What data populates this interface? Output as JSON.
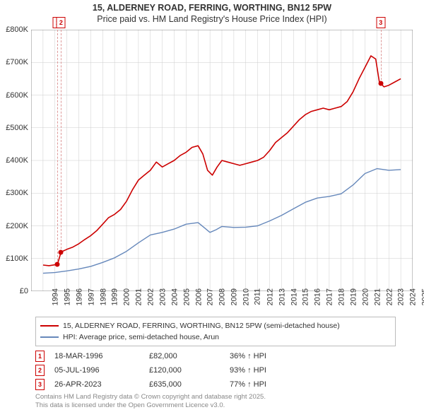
{
  "title": {
    "line1": "15, ALDERNEY ROAD, FERRING, WORTHING, BN12 5PW",
    "line2": "Price paid vs. HM Land Registry's House Price Index (HPI)"
  },
  "chart": {
    "type": "line",
    "background_color": "#ffffff",
    "grid_color": "#cccccc",
    "axis_color": "#888888",
    "label_color": "#333333",
    "label_fontsize": 11,
    "x": {
      "min": 1994,
      "max": 2026,
      "tick_step": 1,
      "ticks": [
        1994,
        1995,
        1996,
        1997,
        1998,
        1999,
        2000,
        2001,
        2002,
        2003,
        2004,
        2005,
        2006,
        2007,
        2008,
        2009,
        2010,
        2011,
        2012,
        2013,
        2014,
        2015,
        2016,
        2017,
        2018,
        2019,
        2020,
        2021,
        2022,
        2023,
        2024,
        2025,
        2026
      ]
    },
    "y": {
      "min": 0,
      "max": 800000,
      "tick_step": 100000,
      "ticks": [
        0,
        100000,
        200000,
        300000,
        400000,
        500000,
        600000,
        700000,
        800000
      ],
      "tick_labels": [
        "£0",
        "£100K",
        "£200K",
        "£300K",
        "£400K",
        "£500K",
        "£600K",
        "£700K",
        "£800K"
      ]
    },
    "series": [
      {
        "name": "price_paid",
        "label": "15, ALDERNEY ROAD, FERRING, WORTHING, BN12 5PW (semi-detached house)",
        "color": "#cc0000",
        "line_width": 1.6,
        "points": [
          [
            1995.0,
            80000
          ],
          [
            1995.5,
            78000
          ],
          [
            1996.21,
            82000
          ],
          [
            1996.51,
            120000
          ],
          [
            1997.0,
            128000
          ],
          [
            1997.5,
            135000
          ],
          [
            1998.0,
            145000
          ],
          [
            1998.5,
            158000
          ],
          [
            1999.0,
            170000
          ],
          [
            1999.5,
            185000
          ],
          [
            2000.0,
            205000
          ],
          [
            2000.5,
            225000
          ],
          [
            2001.0,
            235000
          ],
          [
            2001.5,
            250000
          ],
          [
            2002.0,
            275000
          ],
          [
            2002.5,
            310000
          ],
          [
            2003.0,
            340000
          ],
          [
            2003.5,
            355000
          ],
          [
            2004.0,
            370000
          ],
          [
            2004.5,
            395000
          ],
          [
            2005.0,
            380000
          ],
          [
            2005.5,
            390000
          ],
          [
            2006.0,
            400000
          ],
          [
            2006.5,
            415000
          ],
          [
            2007.0,
            425000
          ],
          [
            2007.5,
            440000
          ],
          [
            2008.0,
            445000
          ],
          [
            2008.4,
            420000
          ],
          [
            2008.8,
            370000
          ],
          [
            2009.2,
            355000
          ],
          [
            2009.6,
            380000
          ],
          [
            2010.0,
            400000
          ],
          [
            2010.5,
            395000
          ],
          [
            2011.0,
            390000
          ],
          [
            2011.5,
            385000
          ],
          [
            2012.0,
            390000
          ],
          [
            2012.5,
            395000
          ],
          [
            2013.0,
            400000
          ],
          [
            2013.5,
            410000
          ],
          [
            2014.0,
            430000
          ],
          [
            2014.5,
            455000
          ],
          [
            2015.0,
            470000
          ],
          [
            2015.5,
            485000
          ],
          [
            2016.0,
            505000
          ],
          [
            2016.5,
            525000
          ],
          [
            2017.0,
            540000
          ],
          [
            2017.5,
            550000
          ],
          [
            2018.0,
            555000
          ],
          [
            2018.5,
            560000
          ],
          [
            2019.0,
            555000
          ],
          [
            2019.5,
            560000
          ],
          [
            2020.0,
            565000
          ],
          [
            2020.5,
            580000
          ],
          [
            2021.0,
            610000
          ],
          [
            2021.5,
            650000
          ],
          [
            2022.0,
            685000
          ],
          [
            2022.5,
            720000
          ],
          [
            2022.9,
            710000
          ],
          [
            2023.2,
            640000
          ],
          [
            2023.32,
            635000
          ],
          [
            2023.6,
            625000
          ],
          [
            2024.0,
            630000
          ],
          [
            2024.5,
            640000
          ],
          [
            2025.0,
            650000
          ]
        ]
      },
      {
        "name": "hpi",
        "label": "HPI: Average price, semi-detached house, Arun",
        "color": "#6688bb",
        "line_width": 1.4,
        "points": [
          [
            1995.0,
            55000
          ],
          [
            1996.0,
            57000
          ],
          [
            1997.0,
            62000
          ],
          [
            1998.0,
            68000
          ],
          [
            1999.0,
            76000
          ],
          [
            2000.0,
            88000
          ],
          [
            2001.0,
            102000
          ],
          [
            2002.0,
            122000
          ],
          [
            2003.0,
            148000
          ],
          [
            2004.0,
            172000
          ],
          [
            2005.0,
            180000
          ],
          [
            2006.0,
            190000
          ],
          [
            2007.0,
            205000
          ],
          [
            2008.0,
            210000
          ],
          [
            2008.5,
            195000
          ],
          [
            2009.0,
            180000
          ],
          [
            2009.5,
            188000
          ],
          [
            2010.0,
            198000
          ],
          [
            2011.0,
            195000
          ],
          [
            2012.0,
            196000
          ],
          [
            2013.0,
            200000
          ],
          [
            2014.0,
            215000
          ],
          [
            2015.0,
            232000
          ],
          [
            2016.0,
            252000
          ],
          [
            2017.0,
            272000
          ],
          [
            2018.0,
            285000
          ],
          [
            2019.0,
            290000
          ],
          [
            2020.0,
            298000
          ],
          [
            2021.0,
            325000
          ],
          [
            2022.0,
            360000
          ],
          [
            2023.0,
            375000
          ],
          [
            2024.0,
            370000
          ],
          [
            2025.0,
            372000
          ]
        ]
      }
    ],
    "markers": [
      {
        "n": "1",
        "x": 1996.21,
        "y": 82000,
        "color": "#cc0000"
      },
      {
        "n": "2",
        "x": 1996.51,
        "y": 120000,
        "color": "#cc0000"
      },
      {
        "n": "3",
        "x": 2023.32,
        "y": 635000,
        "color": "#cc0000"
      }
    ]
  },
  "legend": {
    "line1": "15, ALDERNEY ROAD, FERRING, WORTHING, BN12 5PW (semi-detached house)",
    "line2": "HPI: Average price, semi-detached house, Arun",
    "color1": "#cc0000",
    "color2": "#6688bb"
  },
  "events": [
    {
      "n": "1",
      "date": "18-MAR-1996",
      "price": "£82,000",
      "pct": "36% ↑ HPI",
      "color": "#cc0000"
    },
    {
      "n": "2",
      "date": "05-JUL-1996",
      "price": "£120,000",
      "pct": "93% ↑ HPI",
      "color": "#cc0000"
    },
    {
      "n": "3",
      "date": "26-APR-2023",
      "price": "£635,000",
      "pct": "77% ↑ HPI",
      "color": "#cc0000"
    }
  ],
  "footnote": {
    "line1": "Contains HM Land Registry data © Crown copyright and database right 2025.",
    "line2": "This data is licensed under the Open Government Licence v3.0."
  }
}
